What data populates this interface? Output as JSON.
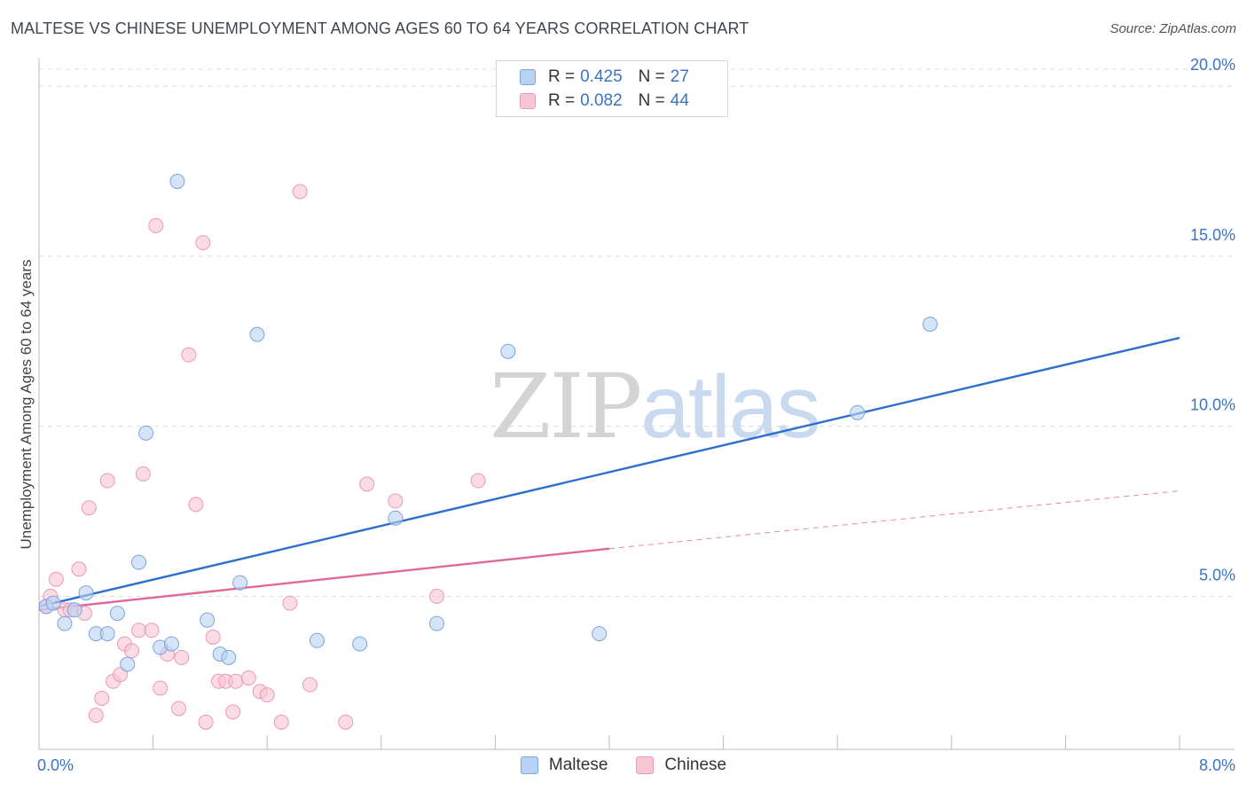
{
  "header": {
    "title": "MALTESE VS CHINESE UNEMPLOYMENT AMONG AGES 60 TO 64 YEARS CORRELATION CHART",
    "source": "Source: ZipAtlas.com"
  },
  "watermark": {
    "zip": "ZIP",
    "atlas": "atlas"
  },
  "legend": {
    "r_label": "R =",
    "n_label": "N =",
    "maltese": {
      "r": "0.425",
      "n": "27"
    },
    "chinese": {
      "r": "0.082",
      "n": "44"
    }
  },
  "colors": {
    "maltese_fill": "#b9d2f1",
    "maltese_stroke": "#7aa5dd",
    "maltese_line": "#2d6fcb",
    "chinese_fill": "#f9c4d3",
    "chinese_stroke": "#ea9ab3",
    "chinese_line": "#e0689a",
    "grid": "#dcdcdc",
    "tick_label": "#3a74c4"
  },
  "chart_data": {
    "type": "scatter",
    "title": "MALTESE VS CHINESE UNEMPLOYMENT AMONG AGES 60 TO 64 YEARS CORRELATION CHART",
    "xlabel": "",
    "ylabel": "Unemployment Among Ages 60 to 64 years",
    "xlim": [
      0,
      8
    ],
    "ylim": [
      0.5,
      20.5
    ],
    "x_tick_labels": [
      "0.0%",
      "8.0%"
    ],
    "y_ticks": [
      5,
      10,
      15,
      20
    ],
    "y_tick_labels": [
      "5.0%",
      "10.0%",
      "15.0%",
      "20.0%"
    ],
    "legend_entries": [
      "Maltese",
      "Chinese"
    ],
    "series": [
      {
        "name": "Maltese",
        "points": [
          [
            0.05,
            4.7
          ],
          [
            0.1,
            4.8
          ],
          [
            0.18,
            4.2
          ],
          [
            0.25,
            4.6
          ],
          [
            0.33,
            5.1
          ],
          [
            0.4,
            3.9
          ],
          [
            0.48,
            3.9
          ],
          [
            0.55,
            4.5
          ],
          [
            0.62,
            3.0
          ],
          [
            0.7,
            6.0
          ],
          [
            0.75,
            9.8
          ],
          [
            0.85,
            3.5
          ],
          [
            0.93,
            3.6
          ],
          [
            0.97,
            17.2
          ],
          [
            1.18,
            4.3
          ],
          [
            1.27,
            3.3
          ],
          [
            1.33,
            3.2
          ],
          [
            1.41,
            5.4
          ],
          [
            1.53,
            12.7
          ],
          [
            1.95,
            3.7
          ],
          [
            2.25,
            3.6
          ],
          [
            2.5,
            7.3
          ],
          [
            2.79,
            4.2
          ],
          [
            3.29,
            12.2
          ],
          [
            3.93,
            3.9
          ],
          [
            5.74,
            10.4
          ],
          [
            6.25,
            13.0
          ]
        ],
        "trend": {
          "x": [
            0,
            8
          ],
          "y": [
            4.7,
            12.6
          ]
        }
      },
      {
        "name": "Chinese",
        "points": [
          [
            0.05,
            4.7
          ],
          [
            0.08,
            5.0
          ],
          [
            0.12,
            5.5
          ],
          [
            0.18,
            4.6
          ],
          [
            0.22,
            4.6
          ],
          [
            0.28,
            5.8
          ],
          [
            0.32,
            4.5
          ],
          [
            0.35,
            7.6
          ],
          [
            0.4,
            1.5
          ],
          [
            0.44,
            2.0
          ],
          [
            0.48,
            8.4
          ],
          [
            0.52,
            2.5
          ],
          [
            0.57,
            2.7
          ],
          [
            0.6,
            3.6
          ],
          [
            0.65,
            3.4
          ],
          [
            0.7,
            4.0
          ],
          [
            0.73,
            8.6
          ],
          [
            0.79,
            4.0
          ],
          [
            0.82,
            15.9
          ],
          [
            0.85,
            2.3
          ],
          [
            0.9,
            3.3
          ],
          [
            0.98,
            1.7
          ],
          [
            1.0,
            3.2
          ],
          [
            1.05,
            12.1
          ],
          [
            1.1,
            7.7
          ],
          [
            1.15,
            15.4
          ],
          [
            1.17,
            1.3
          ],
          [
            1.22,
            3.8
          ],
          [
            1.26,
            2.5
          ],
          [
            1.31,
            2.5
          ],
          [
            1.36,
            1.6
          ],
          [
            1.38,
            2.5
          ],
          [
            1.47,
            2.6
          ],
          [
            1.55,
            2.2
          ],
          [
            1.6,
            2.1
          ],
          [
            1.7,
            1.3
          ],
          [
            1.76,
            4.8
          ],
          [
            1.83,
            16.9
          ],
          [
            1.9,
            2.4
          ],
          [
            2.15,
            1.3
          ],
          [
            2.3,
            8.3
          ],
          [
            2.5,
            7.8
          ],
          [
            2.79,
            5.0
          ],
          [
            3.08,
            8.4
          ]
        ],
        "trend": {
          "x": [
            0,
            4
          ],
          "y": [
            4.6,
            6.4
          ]
        },
        "trend_dashed": {
          "x": [
            4,
            8
          ],
          "y": [
            6.4,
            8.1
          ]
        }
      }
    ]
  },
  "bottom_legend": {
    "maltese": "Maltese",
    "chinese": "Chinese"
  }
}
